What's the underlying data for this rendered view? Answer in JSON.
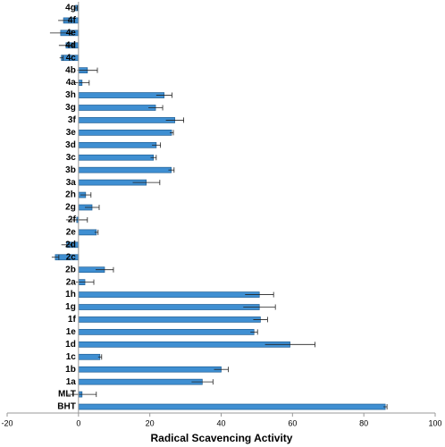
{
  "chart_data": {
    "type": "hbar",
    "xlabel": "Radical Scavencing Activity",
    "categories": [
      "BHT",
      "MLT",
      "1a",
      "1b",
      "1c",
      "1d",
      "1e",
      "1f",
      "1g",
      "1h",
      "2a",
      "2b",
      "2c",
      "2d",
      "2e",
      "2f",
      "2g",
      "2h",
      "3a",
      "3b",
      "3c",
      "3d",
      "3e",
      "3f",
      "3g",
      "3h",
      "4a",
      "4b",
      "4c",
      "4d",
      "4e",
      "4f",
      "4g"
    ],
    "values": [
      86,
      1,
      34.7,
      40,
      6,
      59.3,
      49.2,
      51,
      50.7,
      50.7,
      1.8,
      7.3,
      -6.5,
      -3.3,
      5,
      -0.5,
      3.8,
      2,
      19,
      26,
      21,
      21.8,
      26.1,
      27,
      21.6,
      24,
      1,
      2.5,
      -4.8,
      -3.5,
      -5,
      -4.2,
      -0.8
    ],
    "errors": [
      0.5,
      4,
      3,
      2,
      0.5,
      7,
      1,
      2,
      4.5,
      4,
      2.5,
      2.5,
      1,
      1.5,
      0.5,
      3,
      2,
      1.5,
      3.8,
      0.8,
      0.8,
      1.2,
      0.5,
      2.5,
      2,
      2.2,
      2,
      2.8,
      0.5,
      2,
      3,
      1.5,
      0.5
    ],
    "color": "#3f8fd2",
    "xlim": [
      -20,
      100
    ],
    "xticks": [
      -20,
      0,
      20,
      40,
      60,
      80,
      100
    ]
  }
}
